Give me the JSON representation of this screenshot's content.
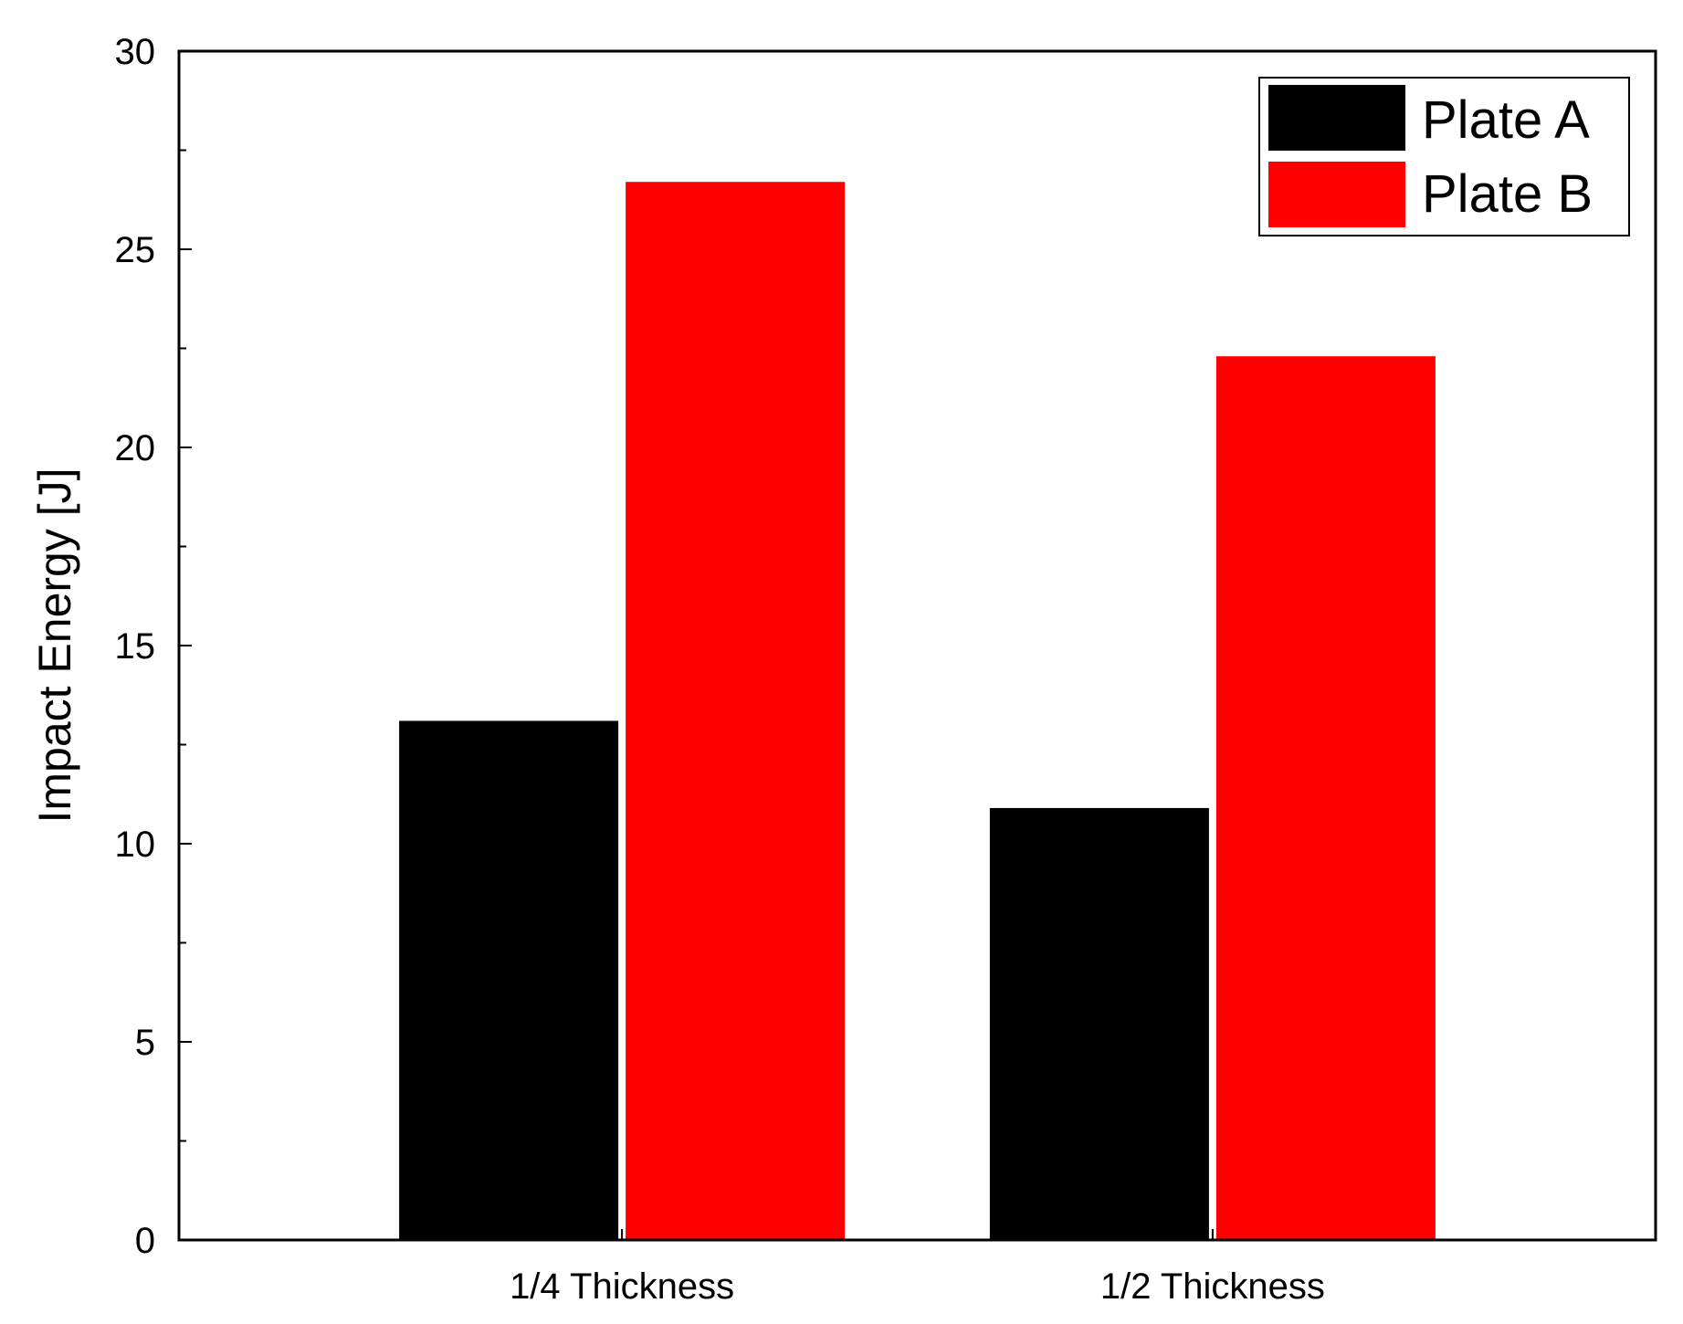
{
  "chart_data": {
    "type": "bar",
    "categories": [
      "1/4 Thickness",
      "1/2 Thickness"
    ],
    "series": [
      {
        "name": "Plate A",
        "color": "#000000",
        "values": [
          13.1,
          10.9
        ]
      },
      {
        "name": "Plate B",
        "color": "#ff0000",
        "values": [
          26.7,
          22.3
        ]
      }
    ],
    "xlabel": "",
    "ylabel": "Impact Energy [J]",
    "ylim": [
      0,
      30
    ],
    "yticks": [
      0,
      5,
      10,
      15,
      20,
      25,
      30
    ],
    "ytick_labels": [
      "0",
      "5",
      "10",
      "15",
      "20",
      "25",
      "30"
    ],
    "grid": false,
    "legend_position": "top-right"
  }
}
